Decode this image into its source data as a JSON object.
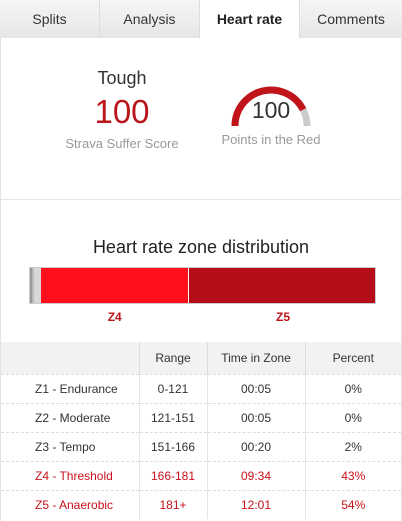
{
  "tabs": [
    {
      "label": "Splits",
      "active": false
    },
    {
      "label": "Analysis",
      "active": false
    },
    {
      "label": "Heart rate",
      "active": true
    },
    {
      "label": "Comments",
      "active": false
    }
  ],
  "suffer": {
    "label": "Tough",
    "value": "100",
    "caption": "Strava Suffer Score"
  },
  "gauge": {
    "value": "100",
    "caption": "Points in the Red",
    "fraction": 0.85,
    "color_fill": "#c0141a",
    "color_track": "#cccccc"
  },
  "distribution": {
    "title": "Heart rate zone distribution",
    "segments": [
      {
        "zone": "Z1",
        "percent": 0,
        "color": "#999999"
      },
      {
        "zone": "Z2",
        "percent": 0,
        "color": "#bbbbbb"
      },
      {
        "zone": "Z3",
        "percent": 2,
        "color": "#d8d8d8"
      },
      {
        "zone": "Z4",
        "percent": 43,
        "color": "#ff0f1c",
        "label": "Z4"
      },
      {
        "zone": "Z5",
        "percent": 54,
        "color": "#b50d17",
        "label": "Z5"
      }
    ]
  },
  "table": {
    "headers": [
      "",
      "Range",
      "Time in Zone",
      "Percent"
    ],
    "rows": [
      {
        "zone": "Z1 - Endurance",
        "range": "0-121",
        "time": "00:05",
        "percent": "0%",
        "hot": false
      },
      {
        "zone": "Z2 - Moderate",
        "range": "121-151",
        "time": "00:05",
        "percent": "0%",
        "hot": false
      },
      {
        "zone": "Z3 - Tempo",
        "range": "151-166",
        "time": "00:20",
        "percent": "2%",
        "hot": false
      },
      {
        "zone": "Z4 - Threshold",
        "range": "166-181",
        "time": "09:34",
        "percent": "43%",
        "hot": true
      },
      {
        "zone": "Z5 - Anaerobic",
        "range": "181+",
        "time": "12:01",
        "percent": "54%",
        "hot": true
      }
    ]
  }
}
